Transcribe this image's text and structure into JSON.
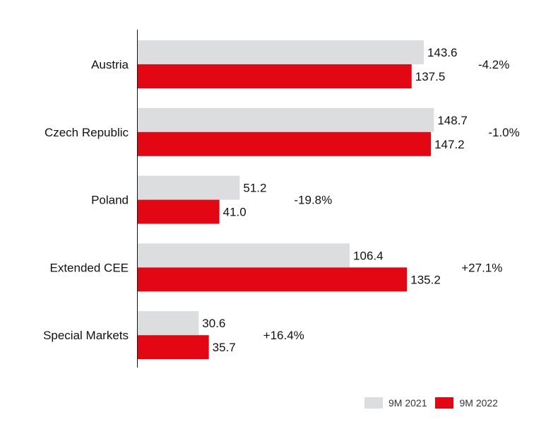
{
  "chart_data": {
    "type": "bar",
    "orientation": "horizontal",
    "categories": [
      "Austria",
      "Czech Republic",
      "Poland",
      "Extended CEE",
      "Special Markets"
    ],
    "series": [
      {
        "name": "9M 2021",
        "color": "#dcdddf",
        "values": [
          143.6,
          148.7,
          51.2,
          106.4,
          30.6
        ]
      },
      {
        "name": "9M 2022",
        "color": "#e30613",
        "values": [
          137.5,
          147.2,
          41.0,
          135.2,
          35.7
        ]
      }
    ],
    "value_labels": {
      "9M 2021": [
        "143.6",
        "148.7",
        "51.2",
        "106.4",
        "30.6"
      ],
      "9M 2022": [
        "137.5",
        "147.2",
        "41.0",
        "135.2",
        "35.7"
      ]
    },
    "changes": [
      "-4.2%",
      "-1.0%",
      "-19.8%",
      "+27.1%",
      "+16.4%"
    ],
    "xlim": [
      0,
      210
    ],
    "grid": false,
    "legend_position": "bottom-right"
  }
}
